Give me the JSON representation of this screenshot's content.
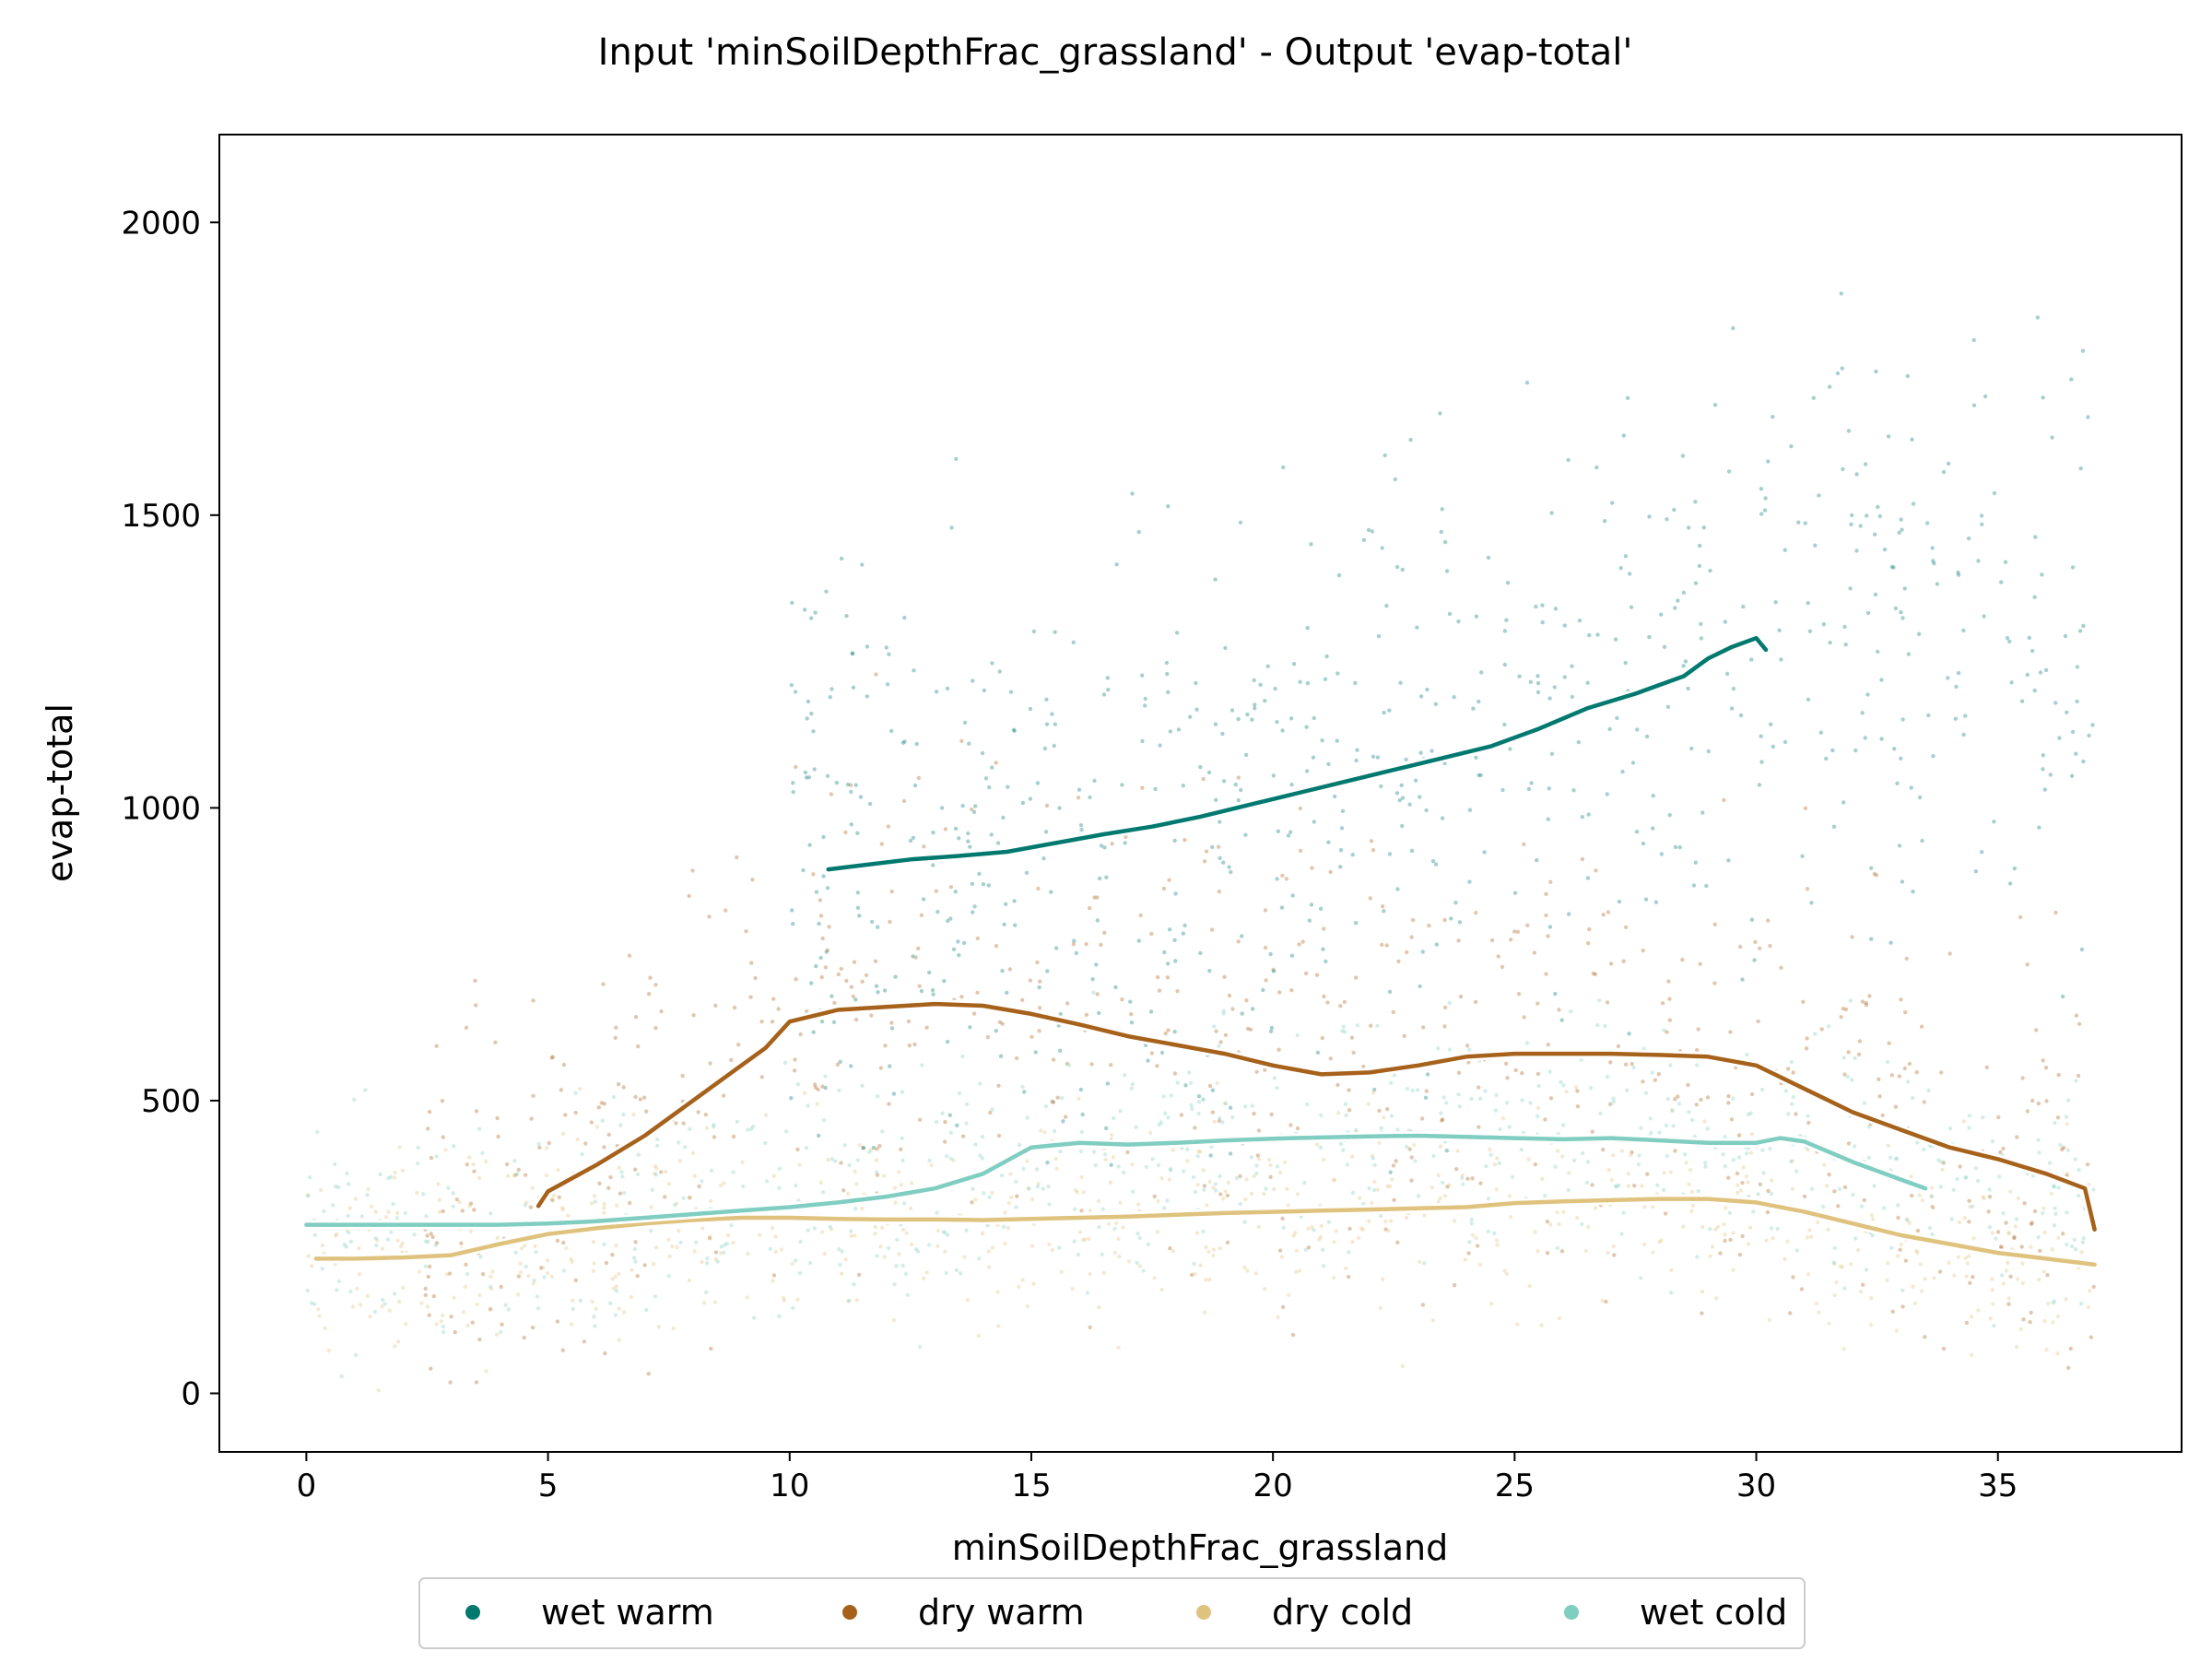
{
  "chart_data": {
    "type": "scatter",
    "title": "Input 'minSoilDepthFrac_grassland' - Output 'evap-total'",
    "xlabel": "minSoilDepthFrac_grassland",
    "ylabel": "evap-total",
    "xlim": [
      -1.8,
      38.8
    ],
    "ylim": [
      -100,
      2150
    ],
    "xticks": [
      0,
      5,
      10,
      15,
      20,
      25,
      30,
      35
    ],
    "yticks": [
      0,
      500,
      1000,
      1500,
      2000
    ],
    "grid": false,
    "legend_position": "bottom-center",
    "series": [
      {
        "name": "wet warm",
        "color": "#01796f",
        "trend": {
          "x": [
            10.8,
            11.5,
            12.5,
            13.5,
            14.5,
            15.5,
            16.5,
            17.5,
            18.5,
            19.5,
            20.5,
            21.5,
            22.5,
            23.5,
            24.5,
            25.5,
            26.5,
            27.5,
            28.5,
            29.0,
            29.5,
            30.0,
            30.2
          ],
          "y": [
            895,
            902,
            912,
            918,
            925,
            940,
            955,
            968,
            985,
            1005,
            1025,
            1045,
            1065,
            1085,
            1105,
            1135,
            1170,
            1195,
            1225,
            1255,
            1275,
            1290,
            1270
          ]
        }
      },
      {
        "name": "dry warm",
        "color": "#a6611a",
        "trend": {
          "x": [
            4.8,
            5.0,
            6.0,
            7.0,
            8.0,
            9.0,
            9.5,
            10.0,
            11.0,
            12.0,
            13.0,
            14.0,
            15.0,
            16.0,
            17.0,
            18.0,
            19.0,
            20.0,
            21.0,
            22.0,
            23.0,
            24.0,
            25.0,
            26.0,
            27.0,
            28.0,
            29.0,
            30.0,
            31.0,
            32.0,
            33.0,
            34.0,
            35.0,
            36.0,
            36.8,
            37.0
          ],
          "y": [
            320,
            345,
            390,
            440,
            500,
            560,
            590,
            635,
            655,
            660,
            665,
            662,
            648,
            630,
            610,
            595,
            580,
            560,
            545,
            548,
            560,
            575,
            580,
            580,
            580,
            578,
            575,
            560,
            520,
            480,
            450,
            420,
            400,
            375,
            350,
            280
          ]
        }
      },
      {
        "name": "dry cold",
        "color": "#dfc27d",
        "trend": {
          "x": [
            0.2,
            1.0,
            2.0,
            3.0,
            4.0,
            5.0,
            6.0,
            7.0,
            8.0,
            9.0,
            10.0,
            11.0,
            12.0,
            13.0,
            14.0,
            15.0,
            16.0,
            17.0,
            18.0,
            19.0,
            20.0,
            21.0,
            22.0,
            23.0,
            24.0,
            25.0,
            26.0,
            27.0,
            28.0,
            29.0,
            30.0,
            31.0,
            32.0,
            33.0,
            34.0,
            35.0,
            36.0,
            37.0
          ],
          "y": [
            230,
            230,
            232,
            236,
            255,
            272,
            282,
            290,
            296,
            300,
            300,
            298,
            297,
            297,
            296,
            298,
            300,
            302,
            305,
            308,
            310,
            312,
            314,
            316,
            318,
            325,
            328,
            330,
            332,
            332,
            326,
            310,
            290,
            270,
            255,
            240,
            230,
            220
          ]
        }
      },
      {
        "name": "wet cold",
        "color": "#80cdc1",
        "trend": {
          "x": [
            0.0,
            1.0,
            2.0,
            3.0,
            4.0,
            5.0,
            6.0,
            7.0,
            8.0,
            9.0,
            10.0,
            11.0,
            12.0,
            13.0,
            14.0,
            15.0,
            16.0,
            17.0,
            18.0,
            19.0,
            20.0,
            21.0,
            22.0,
            23.0,
            24.0,
            25.0,
            26.0,
            27.0,
            28.0,
            29.0,
            30.0,
            30.5,
            31.0,
            32.0,
            33.0,
            33.5
          ],
          "y": [
            288,
            288,
            288,
            288,
            288,
            290,
            294,
            300,
            306,
            312,
            318,
            326,
            336,
            350,
            375,
            420,
            428,
            425,
            428,
            432,
            435,
            437,
            439,
            440,
            438,
            436,
            434,
            436,
            432,
            428,
            428,
            436,
            430,
            395,
            365,
            350
          ]
        }
      }
    ]
  }
}
